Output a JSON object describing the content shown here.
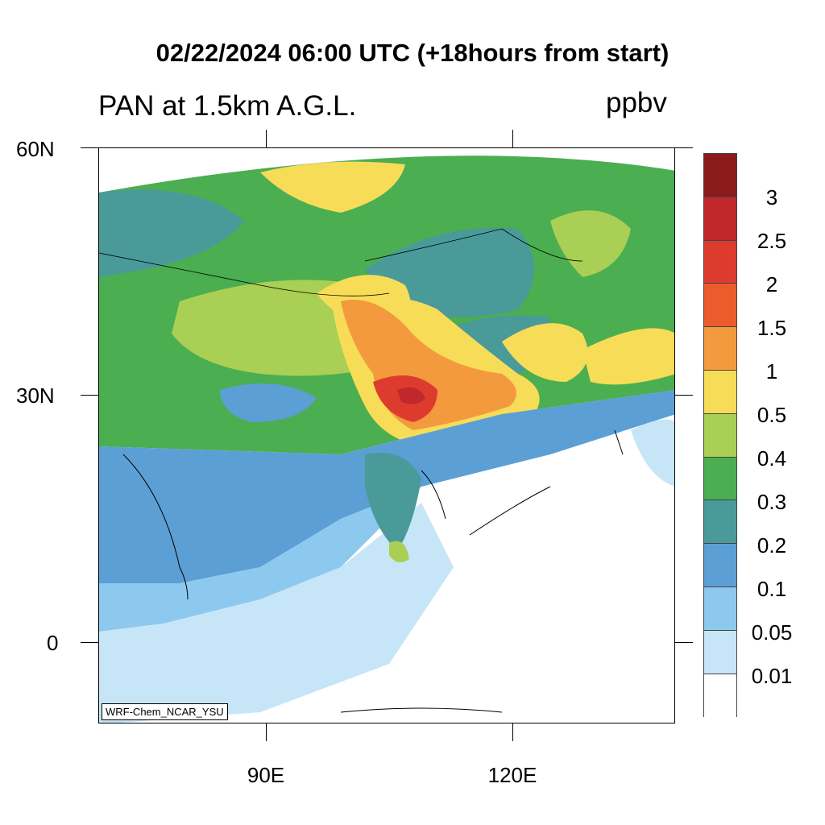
{
  "title": "02/22/2024 06:00 UTC (+18hours from start)",
  "subtitle": "PAN at 1.5km A.G.L.",
  "units": "ppbv",
  "credit": "WRF-Chem_NCAR_YSU",
  "axes": {
    "lat_labels": [
      "60N",
      "30N",
      "0"
    ],
    "lon_labels": [
      "90E",
      "120E"
    ]
  },
  "colorbar": {
    "labels": [
      "3",
      "2.5",
      "2",
      "1.5",
      "1",
      "0.5",
      "0.4",
      "0.3",
      "0.2",
      "0.1",
      "0.05",
      "0.01"
    ],
    "colors": [
      "#8b1a1a",
      "#c0282b",
      "#dd3b2e",
      "#ec5b2c",
      "#f39a3e",
      "#f7dc58",
      "#a9cf55",
      "#4bae50",
      "#4a9a9a",
      "#5b9fd5",
      "#8dc9ee",
      "#c6e6f7",
      "#ffffff"
    ]
  }
}
